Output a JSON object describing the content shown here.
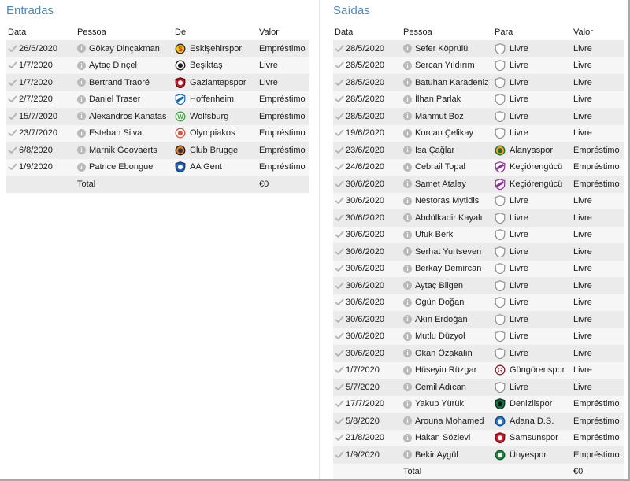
{
  "colors": {
    "accent_blue": "#4d87c7",
    "row_stripe_dark": "#ebebeb",
    "row_stripe_light": "#f6f6f6",
    "window_border": "#a8a8a8",
    "panel_divider": "#e4e4e4",
    "text": "#1d1d1d",
    "icon_gray": "#b9b9b9"
  },
  "icons": {
    "row_status": "check-icon",
    "person_info": "info-icon",
    "free_agent_badge": "blank-shield-icon"
  },
  "entradas": {
    "title": "Entradas",
    "columns": [
      "Data",
      "Pessoa",
      "De",
      "Valor"
    ],
    "total_label": "Total",
    "total_value": "€0",
    "rows": [
      {
        "date": "26/6/2020",
        "person": "Gökay Dinçakman",
        "club": "Eskişehirspor",
        "value": "Empréstimo",
        "badge": {
          "shape": "circle",
          "bg": "#f2c400",
          "border": "#2b2b2b",
          "inner": "letter",
          "glyph": "S",
          "fg": "#d41414"
        }
      },
      {
        "date": "1/7/2020",
        "person": "Aytaç Dinçel",
        "club": "Beşiktaş",
        "value": "Livre",
        "badge": {
          "shape": "circle",
          "bg": "#ffffff",
          "border": "#1a1a1a",
          "inner": "dot",
          "fg": "#1a1a1a"
        }
      },
      {
        "date": "1/7/2020",
        "person": "Bertrand Traoré",
        "club": "Gaziantepspor",
        "value": "Livre",
        "badge": {
          "shape": "shield",
          "bg": "#c41824",
          "border": "#56080c",
          "inner": "dot",
          "fg": "#ffffff"
        }
      },
      {
        "date": "2/7/2020",
        "person": "Daniel Traser",
        "club": "Hoffenheim",
        "value": "Empréstimo",
        "badge": {
          "shape": "shield",
          "bg": "#ffffff",
          "border": "#1565c0",
          "inner": "band",
          "fg": "#1565c0"
        }
      },
      {
        "date": "15/7/2020",
        "person": "Alexandros Kanatas",
        "club": "Wolfsburg",
        "value": "Empréstimo",
        "badge": {
          "shape": "circle",
          "bg": "#ffffff",
          "border": "#35a535",
          "inner": "letter",
          "glyph": "W",
          "fg": "#35a535"
        }
      },
      {
        "date": "23/7/2020",
        "person": "Esteban Silva",
        "club": "Olympiakos",
        "value": "Empréstimo",
        "badge": {
          "shape": "circle",
          "bg": "#ffffff",
          "border": "#e05540",
          "inner": "dot",
          "fg": "#e05540"
        }
      },
      {
        "date": "6/8/2020",
        "person": "Marnik Goovaerts",
        "club": "Club Brugge",
        "value": "Empréstimo",
        "badge": {
          "shape": "circle",
          "bg": "#e87c1e",
          "border": "#23150a",
          "inner": "dot",
          "fg": "#1d3354"
        }
      },
      {
        "date": "1/9/2020",
        "person": "Patrice Ebongue",
        "club": "AA Gent",
        "value": "Empréstimo",
        "badge": {
          "shape": "shield",
          "bg": "#2060b4",
          "border": "#123a72",
          "inner": "dot",
          "fg": "#ffffff"
        }
      }
    ]
  },
  "saidas": {
    "title": "Saídas",
    "columns": [
      "Data",
      "Pessoa",
      "Para",
      "Valor"
    ],
    "total_label": "Total",
    "total_value": "€0",
    "rows": [
      {
        "date": "28/5/2020",
        "person": "Sefer Köprülü",
        "club": "Livre",
        "value": "Livre",
        "badge": {
          "shape": "shield",
          "bg": "#fdfdfd",
          "border": "#8f8f8f",
          "inner": "none"
        }
      },
      {
        "date": "28/5/2020",
        "person": "Sercan Yıldırım",
        "club": "Livre",
        "value": "Livre",
        "badge": {
          "shape": "shield",
          "bg": "#fdfdfd",
          "border": "#8f8f8f",
          "inner": "none"
        }
      },
      {
        "date": "28/5/2020",
        "person": "Batuhan Karadeniz",
        "club": "Livre",
        "value": "Livre",
        "badge": {
          "shape": "shield",
          "bg": "#fdfdfd",
          "border": "#8f8f8f",
          "inner": "none"
        }
      },
      {
        "date": "28/5/2020",
        "person": "İlhan Parlak",
        "club": "Livre",
        "value": "Livre",
        "badge": {
          "shape": "shield",
          "bg": "#fdfdfd",
          "border": "#8f8f8f",
          "inner": "none"
        }
      },
      {
        "date": "28/5/2020",
        "person": "Mahmut Boz",
        "club": "Livre",
        "value": "Livre",
        "badge": {
          "shape": "shield",
          "bg": "#fdfdfd",
          "border": "#8f8f8f",
          "inner": "none"
        }
      },
      {
        "date": "19/6/2020",
        "person": "Korcan Çelikay",
        "club": "Livre",
        "value": "Livre",
        "badge": {
          "shape": "shield",
          "bg": "#fdfdfd",
          "border": "#8f8f8f",
          "inner": "none"
        }
      },
      {
        "date": "23/6/2020",
        "person": "İsa Çağlar",
        "club": "Alanyaspor",
        "value": "Empréstimo",
        "badge": {
          "shape": "circle",
          "bg": "#f0a22c",
          "border": "#1d6e2d",
          "inner": "dot",
          "fg": "#1d6e2d"
        }
      },
      {
        "date": "24/6/2020",
        "person": "Cebrail Topal",
        "club": "Keçiörengücü",
        "value": "Empréstimo",
        "badge": {
          "shape": "shield",
          "bg": "#ffffff",
          "border": "#8c2b96",
          "inner": "band",
          "fg": "#8c2b96"
        }
      },
      {
        "date": "30/6/2020",
        "person": "Samet Atalay",
        "club": "Keçiörengücü",
        "value": "Empréstimo",
        "badge": {
          "shape": "shield",
          "bg": "#ffffff",
          "border": "#8c2b96",
          "inner": "band",
          "fg": "#8c2b96"
        }
      },
      {
        "date": "30/6/2020",
        "person": "Nestoras Mytidis",
        "club": "Livre",
        "value": "Livre",
        "badge": {
          "shape": "shield",
          "bg": "#fdfdfd",
          "border": "#8f8f8f",
          "inner": "none"
        }
      },
      {
        "date": "30/6/2020",
        "person": "Abdülkadir Kayalı",
        "club": "Livre",
        "value": "Livre",
        "badge": {
          "shape": "shield",
          "bg": "#fdfdfd",
          "border": "#8f8f8f",
          "inner": "none"
        }
      },
      {
        "date": "30/6/2020",
        "person": "Ufuk Berk",
        "club": "Livre",
        "value": "Livre",
        "badge": {
          "shape": "shield",
          "bg": "#fdfdfd",
          "border": "#8f8f8f",
          "inner": "none"
        }
      },
      {
        "date": "30/6/2020",
        "person": "Serhat Yurtseven",
        "club": "Livre",
        "value": "Livre",
        "badge": {
          "shape": "shield",
          "bg": "#fdfdfd",
          "border": "#8f8f8f",
          "inner": "none"
        }
      },
      {
        "date": "30/6/2020",
        "person": "Berkay Demircan",
        "club": "Livre",
        "value": "Livre",
        "badge": {
          "shape": "shield",
          "bg": "#fdfdfd",
          "border": "#8f8f8f",
          "inner": "none"
        }
      },
      {
        "date": "30/6/2020",
        "person": "Aytaç Bilgen",
        "club": "Livre",
        "value": "Livre",
        "badge": {
          "shape": "shield",
          "bg": "#fdfdfd",
          "border": "#8f8f8f",
          "inner": "none"
        }
      },
      {
        "date": "30/6/2020",
        "person": "Ogün Doğan",
        "club": "Livre",
        "value": "Livre",
        "badge": {
          "shape": "shield",
          "bg": "#fdfdfd",
          "border": "#8f8f8f",
          "inner": "none"
        }
      },
      {
        "date": "30/6/2020",
        "person": "Akın Erdoğan",
        "club": "Livre",
        "value": "Livre",
        "badge": {
          "shape": "shield",
          "bg": "#fdfdfd",
          "border": "#8f8f8f",
          "inner": "none"
        }
      },
      {
        "date": "30/6/2020",
        "person": "Mutlu Düzyol",
        "club": "Livre",
        "value": "Livre",
        "badge": {
          "shape": "shield",
          "bg": "#fdfdfd",
          "border": "#8f8f8f",
          "inner": "none"
        }
      },
      {
        "date": "30/6/2020",
        "person": "Okan Özakalın",
        "club": "Livre",
        "value": "Livre",
        "badge": {
          "shape": "shield",
          "bg": "#fdfdfd",
          "border": "#8f8f8f",
          "inner": "none"
        }
      },
      {
        "date": "1/7/2020",
        "person": "Hüseyin Rüzgar",
        "club": "Güngörenspor",
        "value": "Livre",
        "badge": {
          "shape": "circle",
          "bg": "#ffffff",
          "border": "#8a1a26",
          "inner": "letter",
          "glyph": "G",
          "fg": "#b02434"
        }
      },
      {
        "date": "5/7/2020",
        "person": "Cemil Adıcan",
        "club": "Livre",
        "value": "Livre",
        "badge": {
          "shape": "shield",
          "bg": "#fdfdfd",
          "border": "#8f8f8f",
          "inner": "none"
        }
      },
      {
        "date": "17/7/2020",
        "person": "Yakup Yürük",
        "club": "Denizlispor",
        "value": "Empréstimo",
        "badge": {
          "shape": "shield",
          "bg": "#0c7a46",
          "border": "#16221c",
          "inner": "dot",
          "fg": "#111111"
        }
      },
      {
        "date": "5/8/2020",
        "person": "Arouna Mohamed",
        "club": "Adana D.S.",
        "value": "Empréstimo",
        "badge": {
          "shape": "circle",
          "bg": "#2a7ac8",
          "border": "#14488a",
          "inner": "dot",
          "fg": "#ffffff"
        }
      },
      {
        "date": "21/8/2020",
        "person": "Hakan Sözlevi",
        "club": "Samsunspor",
        "value": "Empréstimo",
        "badge": {
          "shape": "shield",
          "bg": "#d41a2a",
          "border": "#7a0e16",
          "inner": "dot",
          "fg": "#ffffff"
        }
      },
      {
        "date": "1/9/2020",
        "person": "Bekir Aygül",
        "club": "Ünyespor",
        "value": "Empréstimo",
        "badge": {
          "shape": "circle",
          "bg": "#1f8a3e",
          "border": "#0f5a26",
          "inner": "dot",
          "fg": "#ffffff"
        }
      }
    ]
  }
}
